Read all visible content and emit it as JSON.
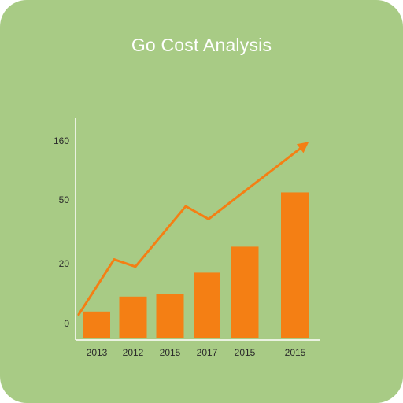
{
  "chart_data": {
    "type": "bar",
    "title": "Go Cost Analysis",
    "xlabel": "",
    "ylabel": "",
    "categories": [
      "2013",
      "2012",
      "2015",
      "2017",
      "2015",
      "2015"
    ],
    "series": [
      {
        "type": "bar",
        "values": [
          4,
          9,
          10,
          17,
          28,
          64
        ]
      },
      {
        "type": "line",
        "values": [
          3,
          22,
          19,
          47,
          41,
          151
        ]
      }
    ],
    "y_ticks": [
      "0",
      "20",
      "50",
      "160"
    ],
    "grid": false,
    "legend": "none",
    "bar_color": "#f47f14",
    "line_color": "#f47f14",
    "background": "#a8cb85"
  }
}
